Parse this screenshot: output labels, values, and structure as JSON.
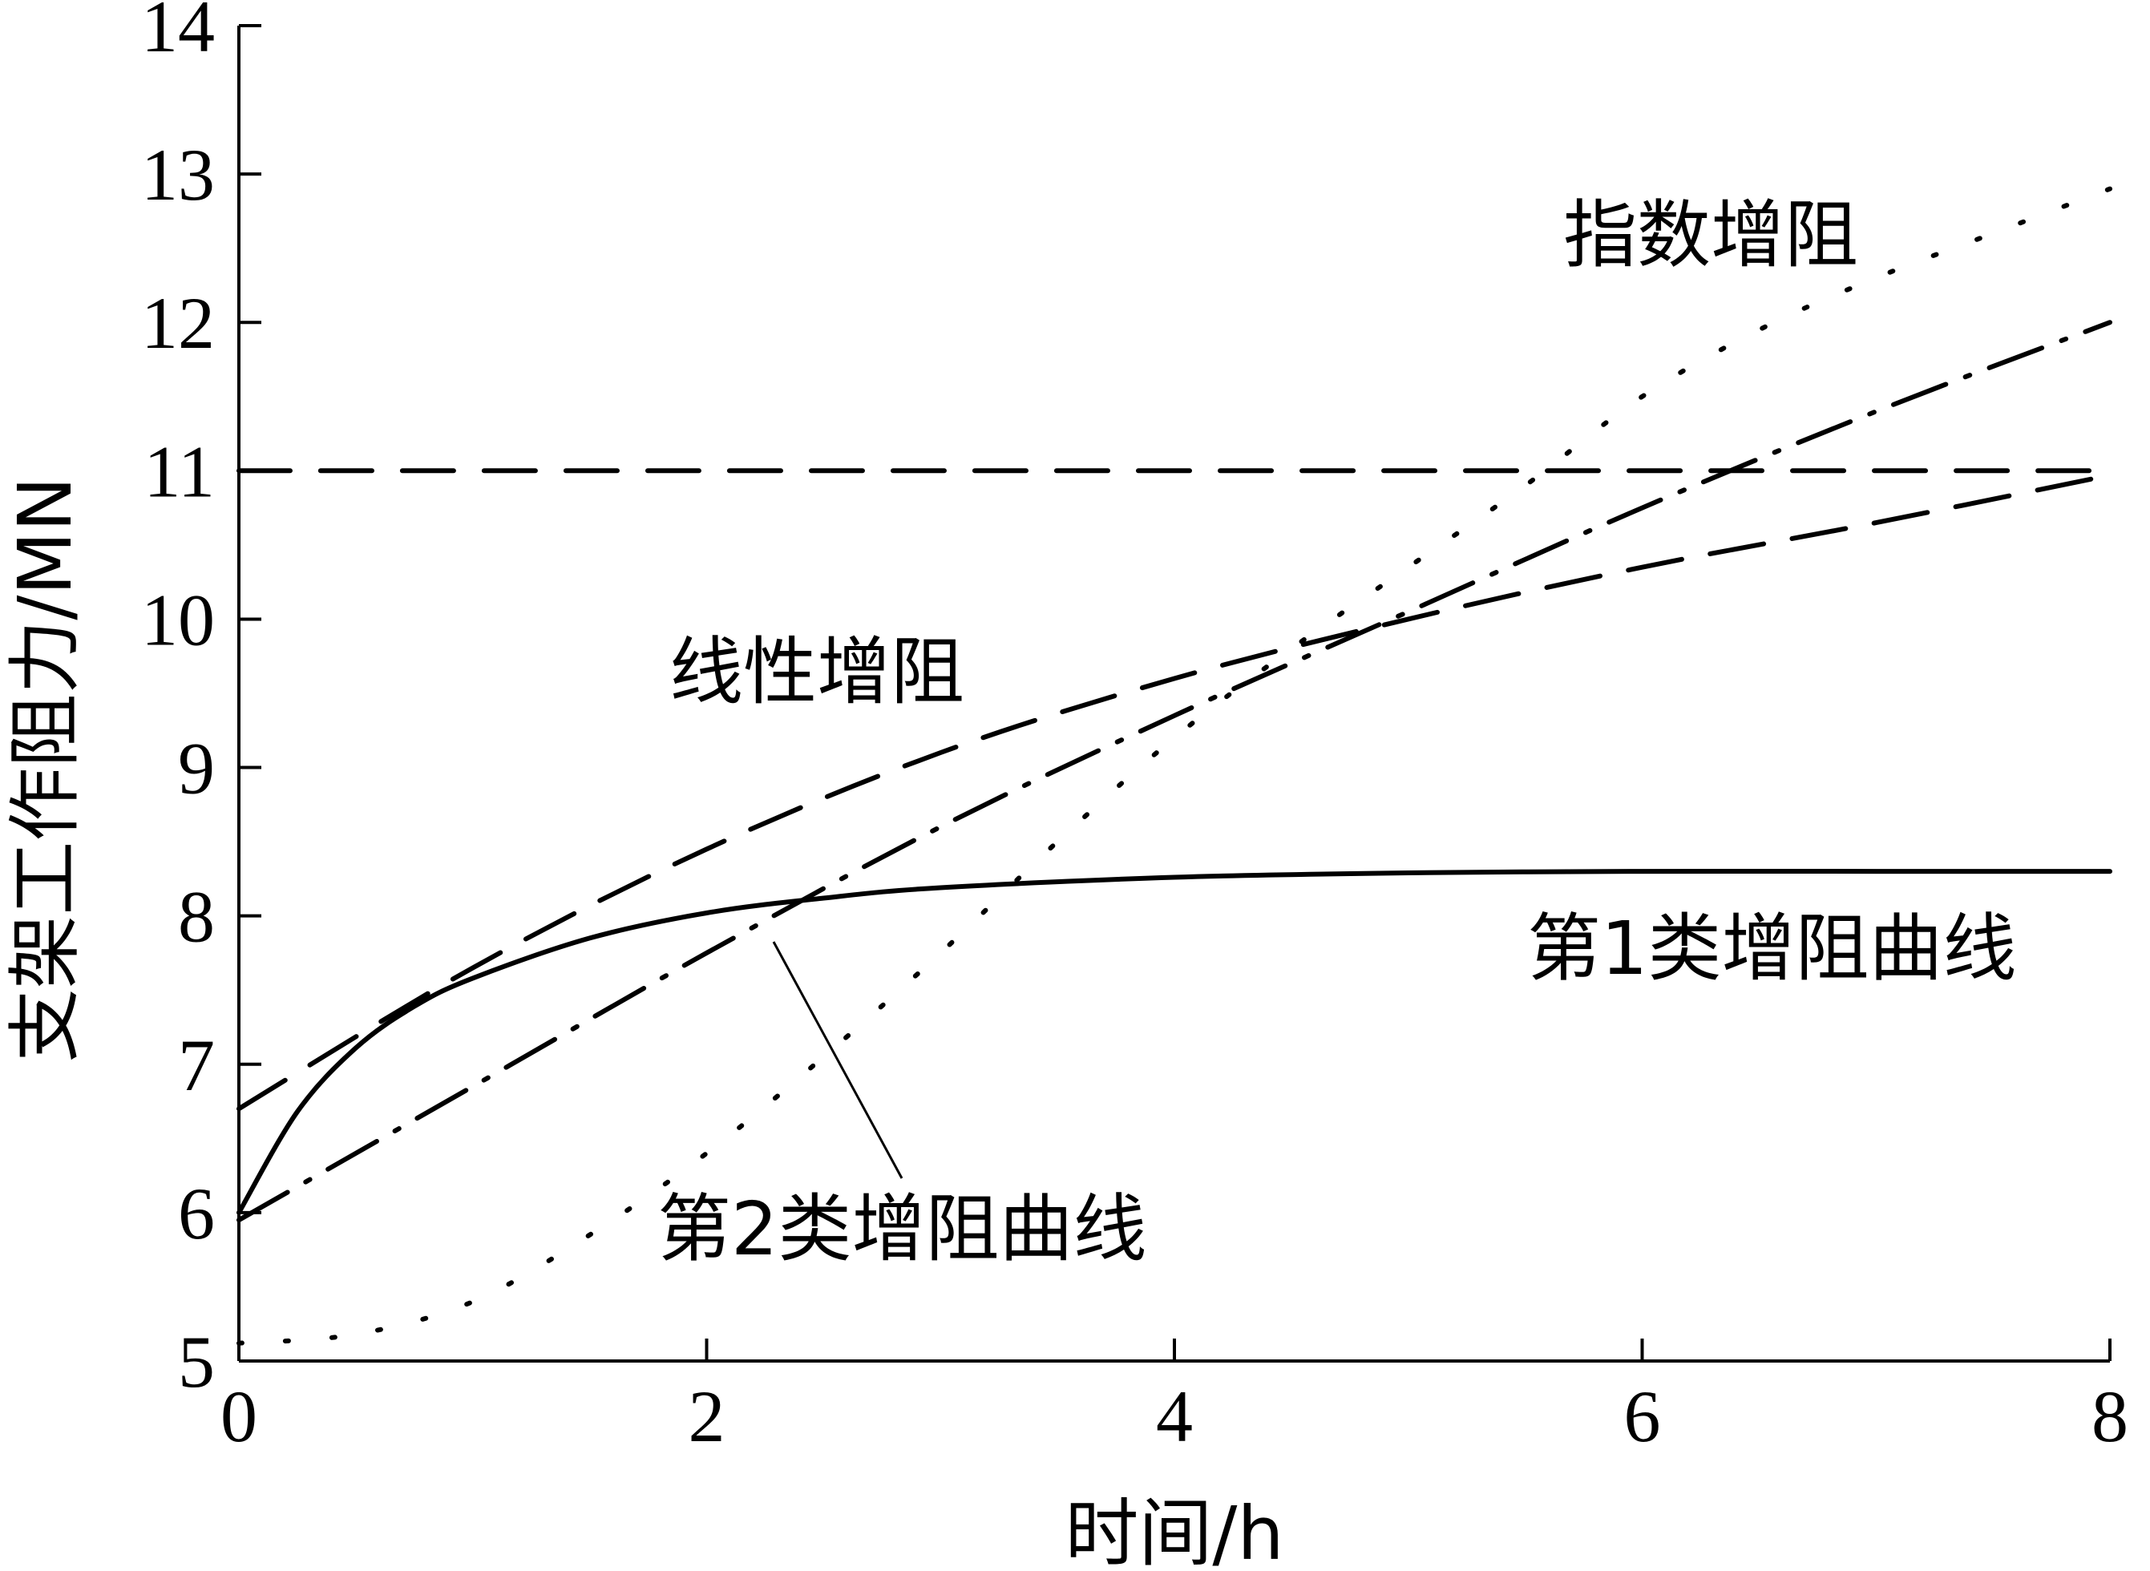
{
  "chart_data": {
    "type": "line",
    "xlabel": "时间/h",
    "ylabel": "支架工作阻力/MN",
    "xlim": [
      0,
      8
    ],
    "ylim": [
      5,
      14
    ],
    "xticks": [
      "0",
      "2",
      "4",
      "6",
      "8"
    ],
    "yticks": [
      "5",
      "6",
      "7",
      "8",
      "9",
      "10",
      "11",
      "12",
      "13",
      "14"
    ],
    "grid": false,
    "series": [
      {
        "name": "第1类增阻曲线",
        "style": "solid",
        "x": [
          0,
          0.25,
          0.5,
          0.75,
          1,
          1.5,
          2,
          2.5,
          3,
          4,
          5,
          6,
          7,
          8
        ],
        "y": [
          6.0,
          6.68,
          7.11,
          7.39,
          7.58,
          7.85,
          8.02,
          8.12,
          8.19,
          8.26,
          8.29,
          8.3,
          8.3,
          8.3
        ]
      },
      {
        "name": "第2类增阻曲线",
        "style": "dashdot",
        "x": [
          0,
          1,
          2,
          3,
          4,
          5,
          6,
          7,
          8
        ],
        "y": [
          5.95,
          6.85,
          7.75,
          8.6,
          9.35,
          10.05,
          10.75,
          11.4,
          12.0
        ]
      },
      {
        "name": "线性增阻",
        "style": "dashed",
        "x": [
          0,
          1,
          2,
          3,
          4,
          5,
          6,
          7,
          8
        ],
        "y": [
          6.7,
          7.65,
          8.45,
          9.1,
          9.6,
          10.0,
          10.35,
          10.65,
          10.97
        ]
      },
      {
        "name": "指数增阻",
        "style": "dotted",
        "x": [
          0,
          0.5,
          1,
          1.5,
          2,
          2.5,
          3,
          3.5,
          4,
          4.5,
          5,
          5.5,
          6,
          6.5,
          7,
          7.5,
          8
        ],
        "y": [
          5.12,
          5.18,
          5.4,
          5.85,
          6.4,
          7.05,
          7.75,
          8.5,
          9.2,
          9.8,
          10.35,
          10.9,
          11.5,
          11.95,
          12.3,
          12.6,
          12.9
        ]
      },
      {
        "name": "",
        "style": "long-dash",
        "x": [
          0,
          8
        ],
        "y": [
          11,
          11
        ]
      }
    ],
    "annotations": [
      {
        "id": "exp",
        "text": "指数增阻"
      },
      {
        "id": "linear",
        "text": "线性增阻"
      },
      {
        "id": "type1",
        "text": "第1类增阻曲线"
      },
      {
        "id": "type2",
        "text": "第2类增阻曲线"
      }
    ]
  }
}
